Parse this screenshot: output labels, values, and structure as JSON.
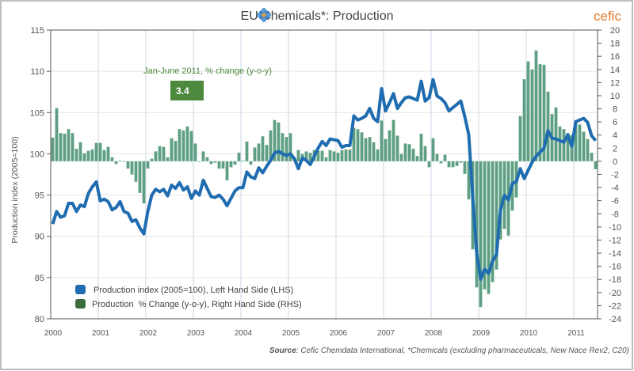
{
  "chart_data": {
    "type": "bar+line",
    "title": "EU Chemicals*: Production",
    "ylabel": "Production index (2005=100)",
    "y_left_lim": [
      80,
      115
    ],
    "y_left_ticks": [
      "80",
      "85",
      "90",
      "95",
      "100",
      "105",
      "110",
      "115"
    ],
    "y_right_lim": [
      -24,
      20
    ],
    "y_right_ticks": [
      "-24",
      "-22",
      "-20",
      "-18",
      "-16",
      "-14",
      "-12",
      "-10",
      "-8",
      "-6",
      "-4",
      "-2",
      "0",
      "2",
      "4",
      "6",
      "8",
      "10",
      "12",
      "14",
      "16",
      "18",
      "20"
    ],
    "x_ticks": [
      "2000",
      "2001",
      "2002",
      "2003",
      "2004",
      "2005",
      "2006",
      "2007",
      "2008",
      "2009",
      "2010",
      "2011"
    ],
    "x_range": [
      "2000-01",
      "2011-06"
    ],
    "frequency": "monthly",
    "grid": true,
    "legend_position": "bottom-left",
    "series": [
      {
        "name": "Production index (2005=100), Left Hand Side (LHS)",
        "type": "line",
        "axis": "left",
        "color": "#1f6db0",
        "values": [
          91.5,
          93.0,
          92.3,
          92.5,
          94.0,
          94.0,
          93.0,
          93.8,
          93.6,
          95.2,
          96.0,
          96.6,
          94.3,
          94.5,
          94.2,
          93.2,
          93.5,
          94.2,
          93.0,
          92.8,
          91.8,
          92.0,
          91.0,
          90.3,
          93.0,
          95.0,
          95.7,
          95.4,
          95.7,
          94.9,
          96.2,
          95.8,
          96.5,
          95.6,
          96.0,
          94.6,
          95.5,
          95.0,
          96.8,
          95.8,
          94.8,
          94.7,
          95.0,
          94.5,
          93.7,
          94.6,
          95.5,
          95.9,
          95.9,
          97.8,
          97.2,
          97.0,
          98.3,
          97.7,
          98.5,
          99.2,
          100.1,
          100.3,
          100.0,
          99.8,
          100.0,
          99.4,
          98.2,
          99.5,
          99.2,
          98.7,
          99.7,
          100.7,
          101.5,
          101.0,
          101.8,
          101.7,
          101.6,
          100.8,
          101.0,
          101.0,
          104.6,
          104.1,
          104.3,
          104.6,
          105.5,
          104.3,
          103.9,
          107.9,
          105.2,
          106.2,
          107.3,
          105.5,
          106.2,
          106.8,
          106.9,
          106.7,
          106.5,
          108.8,
          106.4,
          106.8,
          109.0,
          107.0,
          106.7,
          106.2,
          105.2,
          105.6,
          106.0,
          106.4,
          104.5,
          102.3,
          94.7,
          88.0,
          84.8,
          86.0,
          85.5,
          87.0,
          87.8,
          93.2,
          95.0,
          94.4,
          96.4,
          96.6,
          98.2,
          97.0,
          98.0,
          99.0,
          99.7,
          100.2,
          100.7,
          102.8,
          101.9,
          101.8,
          101.6,
          101.4,
          102.3,
          100.9,
          103.9,
          104.1,
          104.3,
          103.8,
          102.2,
          101.6
        ]
      },
      {
        "name": "Production  % Change (y-o-y), Right Hand Side (RHS)",
        "type": "bar",
        "axis": "right",
        "color": "#5e9e82",
        "values": [
          3.6,
          8.1,
          4.3,
          4.2,
          4.9,
          4.3,
          1.9,
          2.9,
          1.2,
          1.6,
          1.8,
          2.8,
          2.8,
          1.7,
          2.2,
          0.6,
          -0.4,
          0.1,
          0.0,
          -1.1,
          -2.0,
          -3.1,
          -4.8,
          -6.4,
          -1.1,
          0.4,
          1.5,
          2.3,
          2.2,
          0.6,
          3.5,
          3.1,
          4.9,
          4.7,
          5.3,
          4.6,
          2.7,
          0.0,
          1.5,
          0.6,
          -0.4,
          -0.2,
          -1.1,
          -1.1,
          -2.9,
          -0.9,
          -0.5,
          1.3,
          0.1,
          3.0,
          -0.5,
          2.1,
          2.7,
          3.8,
          2.5,
          4.7,
          6.3,
          5.9,
          4.3,
          3.7,
          4.3,
          0.6,
          1.7,
          1.1,
          1.5,
          1.3,
          1.7,
          1.6,
          1.6,
          0.6,
          1.7,
          1.5,
          1.3,
          1.7,
          1.8,
          1.8,
          5.1,
          4.9,
          4.4,
          3.5,
          3.7,
          2.9,
          1.8,
          6.2,
          3.4,
          4.7,
          6.3,
          3.9,
          1.1,
          2.7,
          2.6,
          1.9,
          0.8,
          4.2,
          2.3,
          -0.9,
          3.5,
          1.1,
          -0.3,
          1.0,
          -0.9,
          -0.9,
          -0.7,
          -0.2,
          -1.9,
          -5.8,
          -13.4,
          -19.2,
          -22.2,
          -19.5,
          -20.2,
          -18.4,
          -16.5,
          -11.9,
          -10.3,
          -11.3,
          -7.5,
          -5.5,
          6.9,
          12.5,
          15.2,
          14.0,
          16.9,
          14.8,
          14.7,
          10.6,
          7.2,
          8.2,
          5.3,
          4.9,
          4.3,
          4.0,
          6.2,
          5.6,
          4.5,
          3.4,
          1.3,
          -1.2
        ]
      }
    ],
    "annotation": {
      "label": "Jan-June 2011, % change (y-o-y)",
      "value": "3.4",
      "color": "#4e8a3e"
    },
    "source_label": "Source",
    "source_text": ": Cefic Chemdata International, *Chemicals (excluding pharmaceuticals, New Nace Rev2, C20)"
  },
  "logo": {
    "text": "cefic",
    "color": "#e07a2c"
  }
}
